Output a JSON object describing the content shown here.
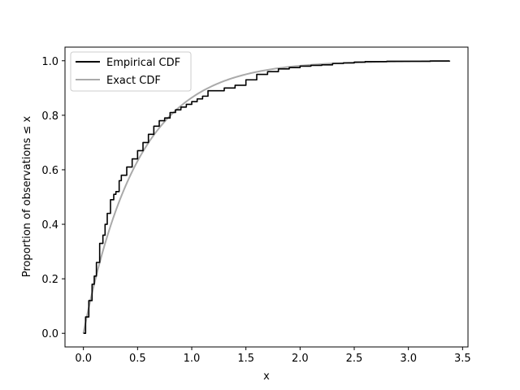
{
  "chart_data": {
    "type": "line",
    "title": "",
    "xlabel": "x",
    "ylabel": "Proportion of observations ≤ x",
    "xlim": [
      -0.17,
      3.55
    ],
    "ylim": [
      -0.05,
      1.05
    ],
    "xticks": [
      0.0,
      0.5,
      1.0,
      1.5,
      2.0,
      2.5,
      3.0,
      3.5
    ],
    "xtick_labels": [
      "0.0",
      "0.5",
      "1.0",
      "1.5",
      "2.0",
      "2.5",
      "3.0",
      "3.5"
    ],
    "yticks": [
      0.0,
      0.2,
      0.4,
      0.6,
      0.8,
      1.0
    ],
    "ytick_labels": [
      "0.0",
      "0.2",
      "0.4",
      "0.6",
      "0.8",
      "1.0"
    ],
    "grid": false,
    "legend_position": "top-left",
    "series": [
      {
        "name": "Empirical CDF",
        "color": "#000000",
        "x": [
          0.0,
          0.02,
          0.05,
          0.08,
          0.1,
          0.12,
          0.15,
          0.18,
          0.2,
          0.22,
          0.25,
          0.28,
          0.3,
          0.33,
          0.35,
          0.4,
          0.45,
          0.5,
          0.55,
          0.6,
          0.65,
          0.7,
          0.75,
          0.8,
          0.85,
          0.9,
          0.95,
          1.0,
          1.05,
          1.1,
          1.15,
          1.2,
          1.3,
          1.4,
          1.5,
          1.6,
          1.7,
          1.8,
          1.9,
          2.0,
          2.1,
          2.2,
          2.3,
          2.4,
          2.5,
          2.6,
          2.8,
          3.0,
          3.2,
          3.38
        ],
        "y": [
          0.0,
          0.06,
          0.12,
          0.18,
          0.21,
          0.26,
          0.33,
          0.36,
          0.4,
          0.44,
          0.49,
          0.51,
          0.52,
          0.56,
          0.58,
          0.61,
          0.64,
          0.67,
          0.7,
          0.73,
          0.76,
          0.78,
          0.79,
          0.81,
          0.82,
          0.83,
          0.84,
          0.85,
          0.86,
          0.87,
          0.89,
          0.89,
          0.9,
          0.91,
          0.93,
          0.95,
          0.96,
          0.97,
          0.975,
          0.98,
          0.983,
          0.985,
          0.99,
          0.992,
          0.995,
          0.997,
          0.998,
          0.998,
          0.999,
          1.0
        ]
      },
      {
        "name": "Exact CDF",
        "color": "#aaaaaa",
        "function": "1 - exp(-2x)",
        "x_range": [
          0.0,
          3.38
        ]
      }
    ]
  }
}
